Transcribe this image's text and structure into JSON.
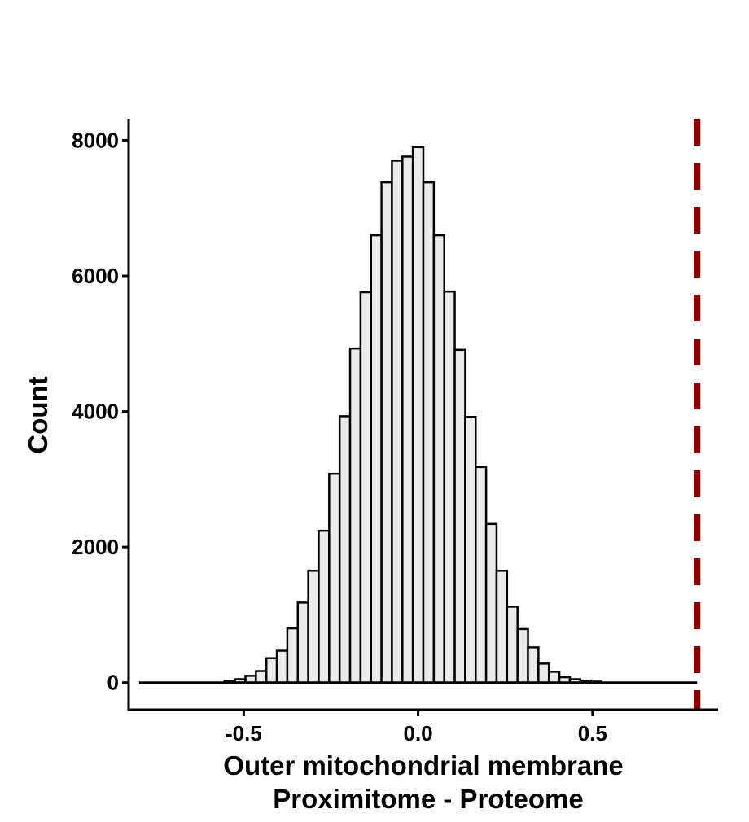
{
  "chart_data": {
    "type": "bar",
    "title": "",
    "xlabel_line1": "Outer mitochondrial membrane",
    "xlabel_line2": "Proximitome - Proteome",
    "ylabel": "Count",
    "xlim": [
      -0.83,
      0.86
    ],
    "ylim": [
      -400,
      8270
    ],
    "x_ticks": [
      -0.5,
      0.0,
      0.5
    ],
    "x_tick_labels": [
      "-0.5",
      "0.0",
      "0.5"
    ],
    "y_ticks": [
      0,
      2000,
      4000,
      6000,
      8000
    ],
    "y_tick_labels": [
      "0",
      "2000",
      "4000",
      "6000",
      "8000"
    ],
    "bin_width": 0.03,
    "bin_centers": [
      -0.54,
      -0.51,
      -0.48,
      -0.45,
      -0.42,
      -0.39,
      -0.36,
      -0.33,
      -0.3,
      -0.27,
      -0.24,
      -0.21,
      -0.18,
      -0.15,
      -0.12,
      -0.09,
      -0.06,
      -0.03,
      0.0,
      0.03,
      0.06,
      0.09,
      0.12,
      0.15,
      0.18,
      0.21,
      0.24,
      0.27,
      0.3,
      0.33,
      0.36,
      0.39,
      0.42,
      0.45,
      0.48,
      0.51
    ],
    "values": [
      20,
      50,
      100,
      170,
      360,
      470,
      800,
      1180,
      1650,
      2240,
      3080,
      3930,
      4930,
      5760,
      6600,
      7380,
      7700,
      7760,
      7900,
      7380,
      6600,
      5770,
      4910,
      3920,
      3180,
      2340,
      1650,
      1120,
      790,
      520,
      280,
      160,
      80,
      50,
      30,
      15
    ],
    "baseline_segment": [
      -0.8,
      0.8
    ],
    "vline": {
      "x": 0.8,
      "style": "dashed",
      "color": "#8b0000"
    },
    "bar_fill": "#ebebeb",
    "bar_stroke": "#000000",
    "grid": false,
    "legend": "none"
  }
}
